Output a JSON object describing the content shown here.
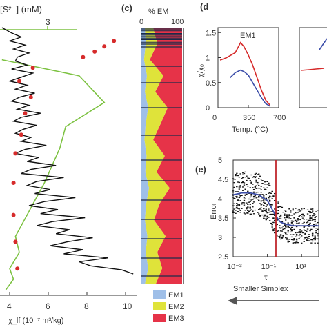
{
  "figure": {
    "panel_c_label": "(c)",
    "panel_d_label": "(d",
    "panel_e_label": "(e)"
  },
  "chart_data": [
    {
      "type": "line",
      "panel": "left",
      "top_axis_label": "[S²⁻] (mM)",
      "top_axis_ticks": [
        "3"
      ],
      "xlabel": "χ_lf (10⁻⁷ m³/kg)",
      "x_ticks": [
        "4",
        "6",
        "8",
        "10"
      ],
      "xlim": [
        3.5,
        10.5
      ],
      "series": [
        {
          "name": "",
          "color": "#111111",
          "x": [
            3.6,
            4.1,
            4.6,
            4.0,
            4.8,
            4.2,
            5.0,
            4.4,
            4.3,
            4.9,
            4.1,
            5.2,
            4.6,
            4.0,
            4.9,
            4.3,
            5.3,
            4.5,
            4.1,
            5.0,
            4.4,
            5.6,
            4.6,
            4.2,
            5.4,
            4.7,
            4.3,
            5.1,
            4.6,
            5.9,
            4.8,
            4.3,
            5.5,
            4.9,
            6.4,
            5.1,
            4.6,
            6.8,
            5.4,
            4.9,
            6.1,
            5.3,
            7.4,
            5.8,
            5.0,
            6.5,
            5.6,
            7.9,
            6.2,
            5.4,
            7.1,
            6.4,
            8.3,
            7.0,
            6.1,
            7.8,
            6.8,
            9.1,
            7.6,
            8.2,
            9.8,
            10.4
          ],
          "y_frac": [
            1.0,
            0.98,
            0.965,
            0.95,
            0.935,
            0.92,
            0.905,
            0.89,
            0.875,
            0.86,
            0.845,
            0.83,
            0.815,
            0.8,
            0.785,
            0.77,
            0.755,
            0.74,
            0.725,
            0.71,
            0.695,
            0.68,
            0.665,
            0.65,
            0.635,
            0.62,
            0.605,
            0.59,
            0.575,
            0.56,
            0.545,
            0.53,
            0.515,
            0.5,
            0.485,
            0.47,
            0.455,
            0.44,
            0.425,
            0.41,
            0.395,
            0.38,
            0.365,
            0.35,
            0.335,
            0.32,
            0.305,
            0.29,
            0.275,
            0.26,
            0.245,
            0.23,
            0.215,
            0.2,
            0.185,
            0.17,
            0.155,
            0.14,
            0.125,
            0.11,
            0.095,
            0.08
          ]
        },
        {
          "name": "",
          "color": "#7dc242",
          "x": [
            3.8,
            4.2,
            4.0,
            4.5,
            4.3,
            4.9,
            5.8,
            6.6,
            6.9,
            8.9,
            7.6,
            3.6
          ],
          "y_frac": [
            0.02,
            0.06,
            0.1,
            0.16,
            0.22,
            0.3,
            0.42,
            0.55,
            0.63,
            0.72,
            0.82,
            0.88
          ]
        }
      ],
      "markers": {
        "color": "#d62b2b",
        "x": [
          4.4,
          4.3,
          4.2,
          4.2,
          4.3,
          4.6,
          4.8,
          5.1,
          4.5,
          5.2,
          7.8,
          8.4,
          8.9,
          9.4
        ],
        "y_frac": [
          0.1,
          0.2,
          0.3,
          0.42,
          0.53,
          0.6,
          0.68,
          0.74,
          0.8,
          0.85,
          0.89,
          0.91,
          0.93,
          0.95
        ]
      }
    },
    {
      "type": "area",
      "panel": "c",
      "title": "% EM",
      "x_ticks": [
        "0",
        "100"
      ],
      "xlim": [
        0,
        100
      ],
      "series": [
        {
          "name": "EM1",
          "color": "#9fbfe8"
        },
        {
          "name": "EM2",
          "color": "#dfe33a"
        },
        {
          "name": "EM3",
          "color": "#e63348"
        }
      ],
      "boundary_em1": [
        10,
        12,
        8,
        15,
        10,
        18,
        12,
        9,
        14,
        11,
        20,
        13,
        10,
        16,
        12,
        18,
        10
      ],
      "boundary_em2": [
        30,
        40,
        22,
        55,
        35,
        65,
        48,
        30,
        58,
        38,
        70,
        45,
        32,
        60,
        40,
        52,
        36
      ]
    },
    {
      "type": "line",
      "panel": "d",
      "title": "EM1",
      "ylabel": "χ/χ₀",
      "xlabel": "Temp. (°C)",
      "x_ticks": [
        "0",
        "350",
        "700"
      ],
      "y_ticks": [
        "0",
        "0.5",
        "1",
        "1.5"
      ],
      "xlim": [
        0,
        700
      ],
      "ylim": [
        0,
        1.6
      ],
      "series": [
        {
          "name": "",
          "color": "#d62b2b",
          "x": [
            25,
            100,
            200,
            260,
            300,
            350,
            400,
            450,
            500,
            550,
            600
          ],
          "y": [
            0.95,
            1.0,
            1.1,
            1.3,
            1.22,
            1.05,
            0.85,
            0.6,
            0.35,
            0.15,
            0.05
          ]
        },
        {
          "name": "",
          "color": "#3a4ca8",
          "x": [
            140,
            200,
            260,
            300,
            350,
            400,
            450,
            500,
            550,
            600
          ],
          "y": [
            0.6,
            0.7,
            0.75,
            0.72,
            0.65,
            0.5,
            0.35,
            0.2,
            0.08,
            0.03
          ]
        }
      ]
    },
    {
      "type": "line",
      "panel": "e",
      "ylabel": "Error",
      "xlabel": "τ",
      "x_ticks": [
        "10⁻³",
        "10⁻¹",
        "10¹"
      ],
      "y_ticks": [
        "2.5",
        "3",
        "3.5",
        "4",
        "4.5",
        "5"
      ],
      "ylim": [
        2.5,
        5
      ],
      "log_x": true,
      "xlim_log10": [
        -3,
        2
      ],
      "vertical_line_log10": -0.5,
      "vertical_line_color": "#c0272d",
      "series": [
        {
          "name": "",
          "color": "#3a4ca8",
          "x_log10": [
            -3,
            -2.5,
            -2,
            -1.5,
            -1,
            -0.75,
            -0.5,
            -0.25,
            0,
            0.5,
            1,
            1.5,
            2
          ],
          "y": [
            4.1,
            4.15,
            4.15,
            4.1,
            3.95,
            3.75,
            3.55,
            3.4,
            3.35,
            3.3,
            3.3,
            3.3,
            3.3
          ]
        }
      ],
      "arrow_label": "Smaller Simplex"
    }
  ]
}
